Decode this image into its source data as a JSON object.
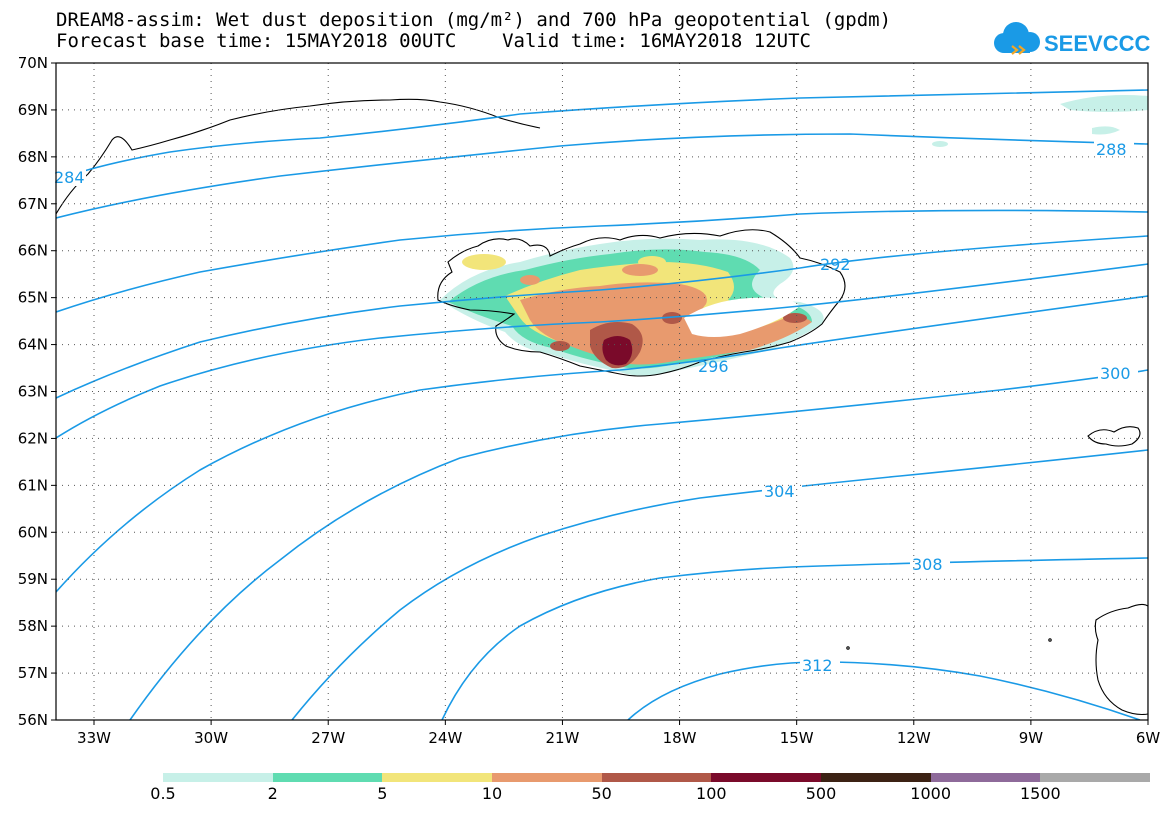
{
  "header": {
    "title_line1": "DREAM8-assim: Wet dust deposition (mg/m²) and 700 hPa geopotential (gpdm)",
    "title_line2": "Forecast base time: 15MAY2018 00UTC    Valid time: 16MAY2018 12UTC",
    "logo_text": "SEEVCCC"
  },
  "map": {
    "lat_labels": [
      "70N",
      "69N",
      "68N",
      "67N",
      "66N",
      "65N",
      "64N",
      "63N",
      "62N",
      "61N",
      "60N",
      "59N",
      "58N",
      "57N",
      "56N"
    ],
    "lon_labels": [
      "33W",
      "30W",
      "27W",
      "24W",
      "21W",
      "18W",
      "15W",
      "12W",
      "9W",
      "6W"
    ],
    "contour_labels": [
      "284",
      "288",
      "292",
      "296",
      "300",
      "304",
      "308",
      "312"
    ],
    "contour_color": "#1a9ae6"
  },
  "legend": {
    "labels": [
      "0.5",
      "2",
      "5",
      "10",
      "50",
      "100",
      "500",
      "1000",
      "1500"
    ],
    "colors": [
      "#c7f0e8",
      "#5fdcb1",
      "#f2e57a",
      "#e89a6e",
      "#b05848",
      "#7a0a2a",
      "#3c2214",
      "#8e6a9a",
      "#a9a9a9"
    ]
  }
}
